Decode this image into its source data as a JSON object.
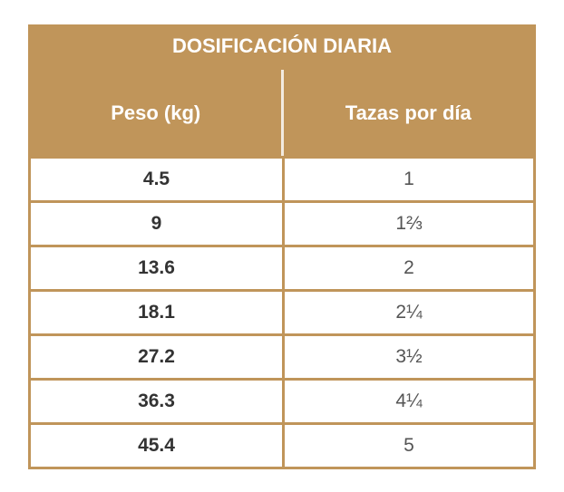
{
  "title": "DOSIFICACIÓN DIARIA",
  "headers": [
    "Peso (kg)",
    "Tazas por día"
  ],
  "rows": [
    [
      "4.5",
      "1"
    ],
    [
      "9",
      "1⅔"
    ],
    [
      "13.6",
      "2"
    ],
    [
      "18.1",
      "2¼"
    ],
    [
      "27.2",
      "3½"
    ],
    [
      "36.3",
      "4¼"
    ],
    [
      "45.4",
      "5"
    ]
  ],
  "colors": {
    "accent": "#c0955a",
    "text": "#333333"
  }
}
